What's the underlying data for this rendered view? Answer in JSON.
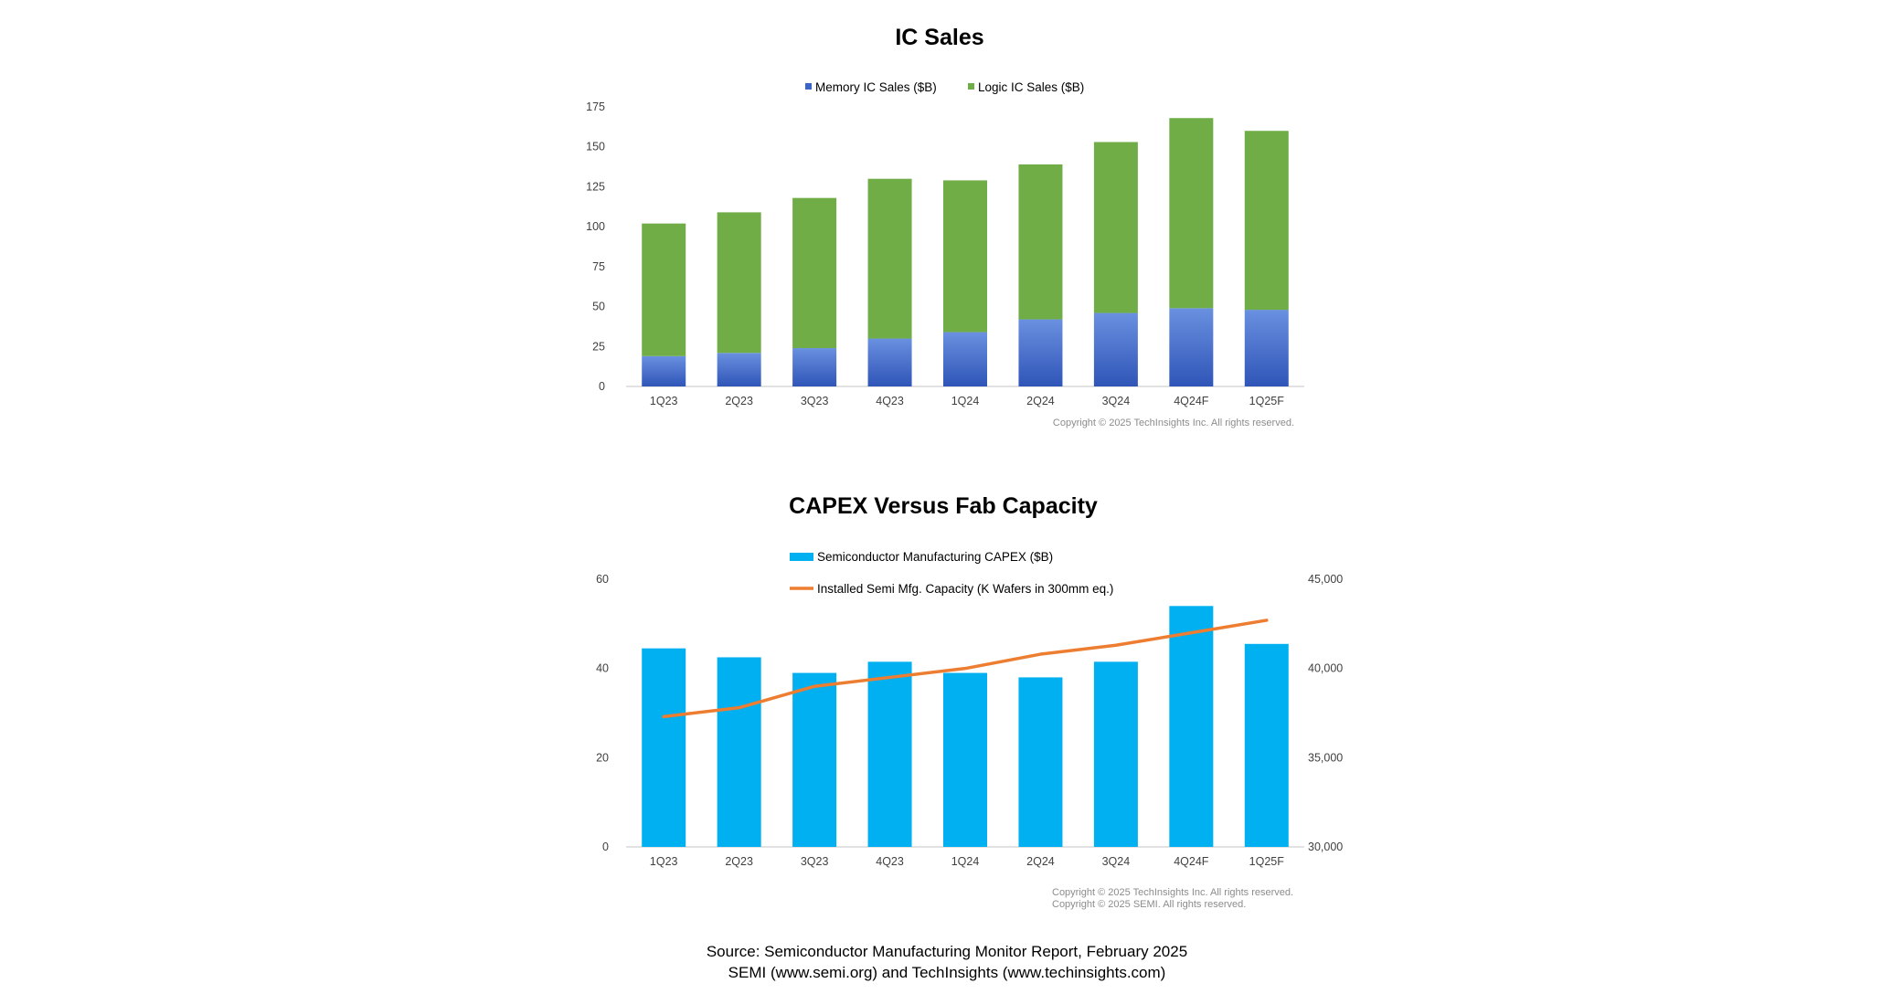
{
  "colors": {
    "memory": "#3a64c8",
    "memory_light": "#5b85dc",
    "logic": "#70ad47",
    "capex": "#00b0f0",
    "capacity": "#ed7d31",
    "axis": "#d9d9d9"
  },
  "chart_data": [
    {
      "type": "bar",
      "stacked": true,
      "title": "IC Sales",
      "categories": [
        "1Q23",
        "2Q23",
        "3Q23",
        "4Q23",
        "1Q24",
        "2Q24",
        "3Q24",
        "4Q24F",
        "1Q25F"
      ],
      "series": [
        {
          "name": "Memory IC Sales ($B)",
          "values": [
            19,
            21,
            24,
            30,
            34,
            42,
            46,
            49,
            48
          ]
        },
        {
          "name": "Logic IC Sales ($B)",
          "values": [
            83,
            88,
            94,
            100,
            95,
            97,
            107,
            119,
            112
          ]
        }
      ],
      "ylim": [
        0,
        175
      ],
      "yticks": [
        "0",
        "25",
        "50",
        "75",
        "100",
        "125",
        "150",
        "175"
      ],
      "legend": "top-center",
      "grid": false,
      "copyright": "Copyright © 2025 TechInsights Inc.  All rights reserved."
    },
    {
      "type": "bar",
      "title": "CAPEX Versus Fab Capacity",
      "categories": [
        "1Q23",
        "2Q23",
        "3Q23",
        "4Q23",
        "1Q24",
        "2Q24",
        "3Q24",
        "4Q24F",
        "1Q25F"
      ],
      "series": [
        {
          "name": "Semiconductor Manufacturing CAPEX ($B)",
          "type": "bar",
          "axis": "left",
          "values": [
            44.5,
            42.5,
            39,
            41.5,
            39,
            38,
            41.5,
            54,
            45.5
          ]
        },
        {
          "name": "Installed Semi Mfg. Capacity (K Wafers in 300mm eq.)",
          "type": "line",
          "axis": "right",
          "values": [
            37300,
            37800,
            39000,
            39500,
            40000,
            40800,
            41300,
            42000,
            42700
          ]
        }
      ],
      "ylim_left": [
        0,
        60
      ],
      "yticks_left": [
        "0",
        "20",
        "40",
        "60"
      ],
      "ylim_right": [
        30000,
        45000
      ],
      "yticks_right": [
        "30,000",
        "35,000",
        "40,000",
        "45,000"
      ],
      "legend": "top-center",
      "grid": false,
      "copyright_lines": [
        "Copyright © 2025 TechInsights Inc.  All rights reserved.",
        "Copyright © 2025 SEMI.  All rights reserved."
      ]
    }
  ],
  "source": {
    "line1": "Source: Semiconductor Manufacturing Monitor Report, February 2025",
    "line2": "SEMI (www.semi.org) and TechInsights (www.techinsights.com)"
  }
}
